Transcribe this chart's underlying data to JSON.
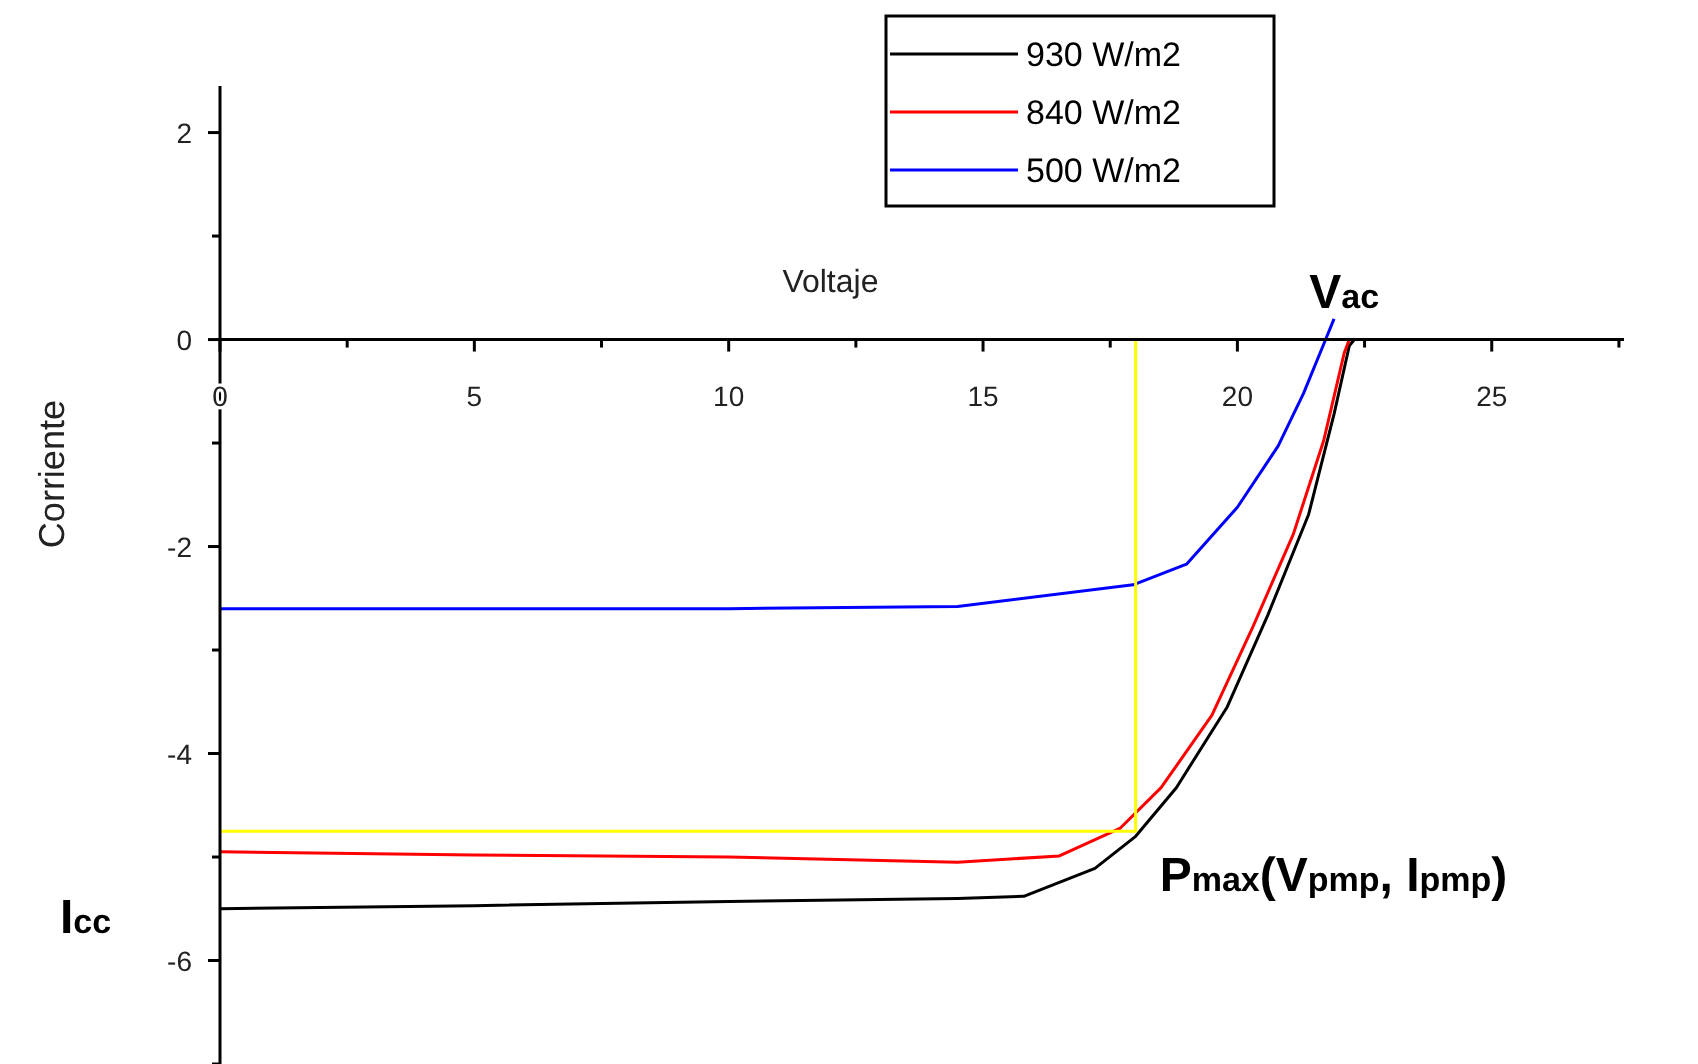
{
  "chart_data": {
    "type": "line",
    "xlabel": "Voltaje",
    "ylabel": "Corriente",
    "xlim": [
      0,
      27.6
    ],
    "ylim": [
      -7,
      2.45
    ],
    "xticks": [
      0,
      {
        "value": 2.5,
        "label": null
      },
      5,
      {
        "value": 7.5,
        "label": null
      },
      10,
      {
        "value": 12.5,
        "label": null
      },
      15,
      {
        "value": 17.5,
        "label": null
      },
      20,
      {
        "value": 22.5,
        "label": null
      },
      25,
      {
        "value": 27.5,
        "label": null
      }
    ],
    "yticks": [
      {
        "value": -7,
        "label": null
      },
      -6,
      {
        "value": -5,
        "label": null
      },
      -4,
      {
        "value": -3,
        "label": null
      },
      -2,
      {
        "value": -1,
        "label": null
      },
      0,
      {
        "value": 1,
        "label": null
      },
      2
    ],
    "grid": false,
    "legend": "top right",
    "line_style": "solid",
    "series": [
      {
        "name": "930 W/m2",
        "color": "#000000",
        "x": [
          0,
          5,
          10,
          14.5,
          15.8,
          17.2,
          18.0,
          18.8,
          19.8,
          20.6,
          21.4,
          21.9,
          22.2,
          22.3
        ],
        "values": [
          -5.5,
          -5.47,
          -5.43,
          -5.4,
          -5.38,
          -5.11,
          -4.8,
          -4.33,
          -3.55,
          -2.66,
          -1.69,
          -0.72,
          -0.06,
          0
        ]
      },
      {
        "name": "840 W/m2",
        "color": "#ff0000",
        "x": [
          0,
          5,
          10,
          14.5,
          16.5,
          17.7,
          18.5,
          19.5,
          20.3,
          21.1,
          21.7,
          22.1,
          22.2
        ],
        "values": [
          -4.95,
          -4.98,
          -5.0,
          -5.05,
          -4.99,
          -4.72,
          -4.33,
          -3.63,
          -2.78,
          -1.88,
          -0.97,
          -0.13,
          0
        ]
      },
      {
        "name": "500 W/m2",
        "color": "#0000ff",
        "x": [
          0,
          5,
          10,
          14.5,
          17.95,
          19.0,
          20.0,
          20.8,
          21.3,
          21.7,
          21.9
        ],
        "values": [
          -2.6,
          -2.6,
          -2.6,
          -2.58,
          -2.37,
          -2.17,
          -1.62,
          -1.03,
          -0.52,
          -0.04,
          0.2
        ]
      },
      {
        "color": "#ffff00",
        "x": [
          0,
          18.0,
          18.0
        ],
        "values": [
          -4.75,
          -4.75,
          0
        ]
      }
    ],
    "annotations": [
      {
        "text": "V$_{ac}$",
        "x": 22.2,
        "y": 0
      },
      {
        "text": "I$_{cc}$",
        "x": 0,
        "y": -5.5
      },
      {
        "text": "P$_{max}$(V$_{pmp}$, I$_{pmp}$)",
        "x": 18.0,
        "y": -4.75
      }
    ]
  }
}
